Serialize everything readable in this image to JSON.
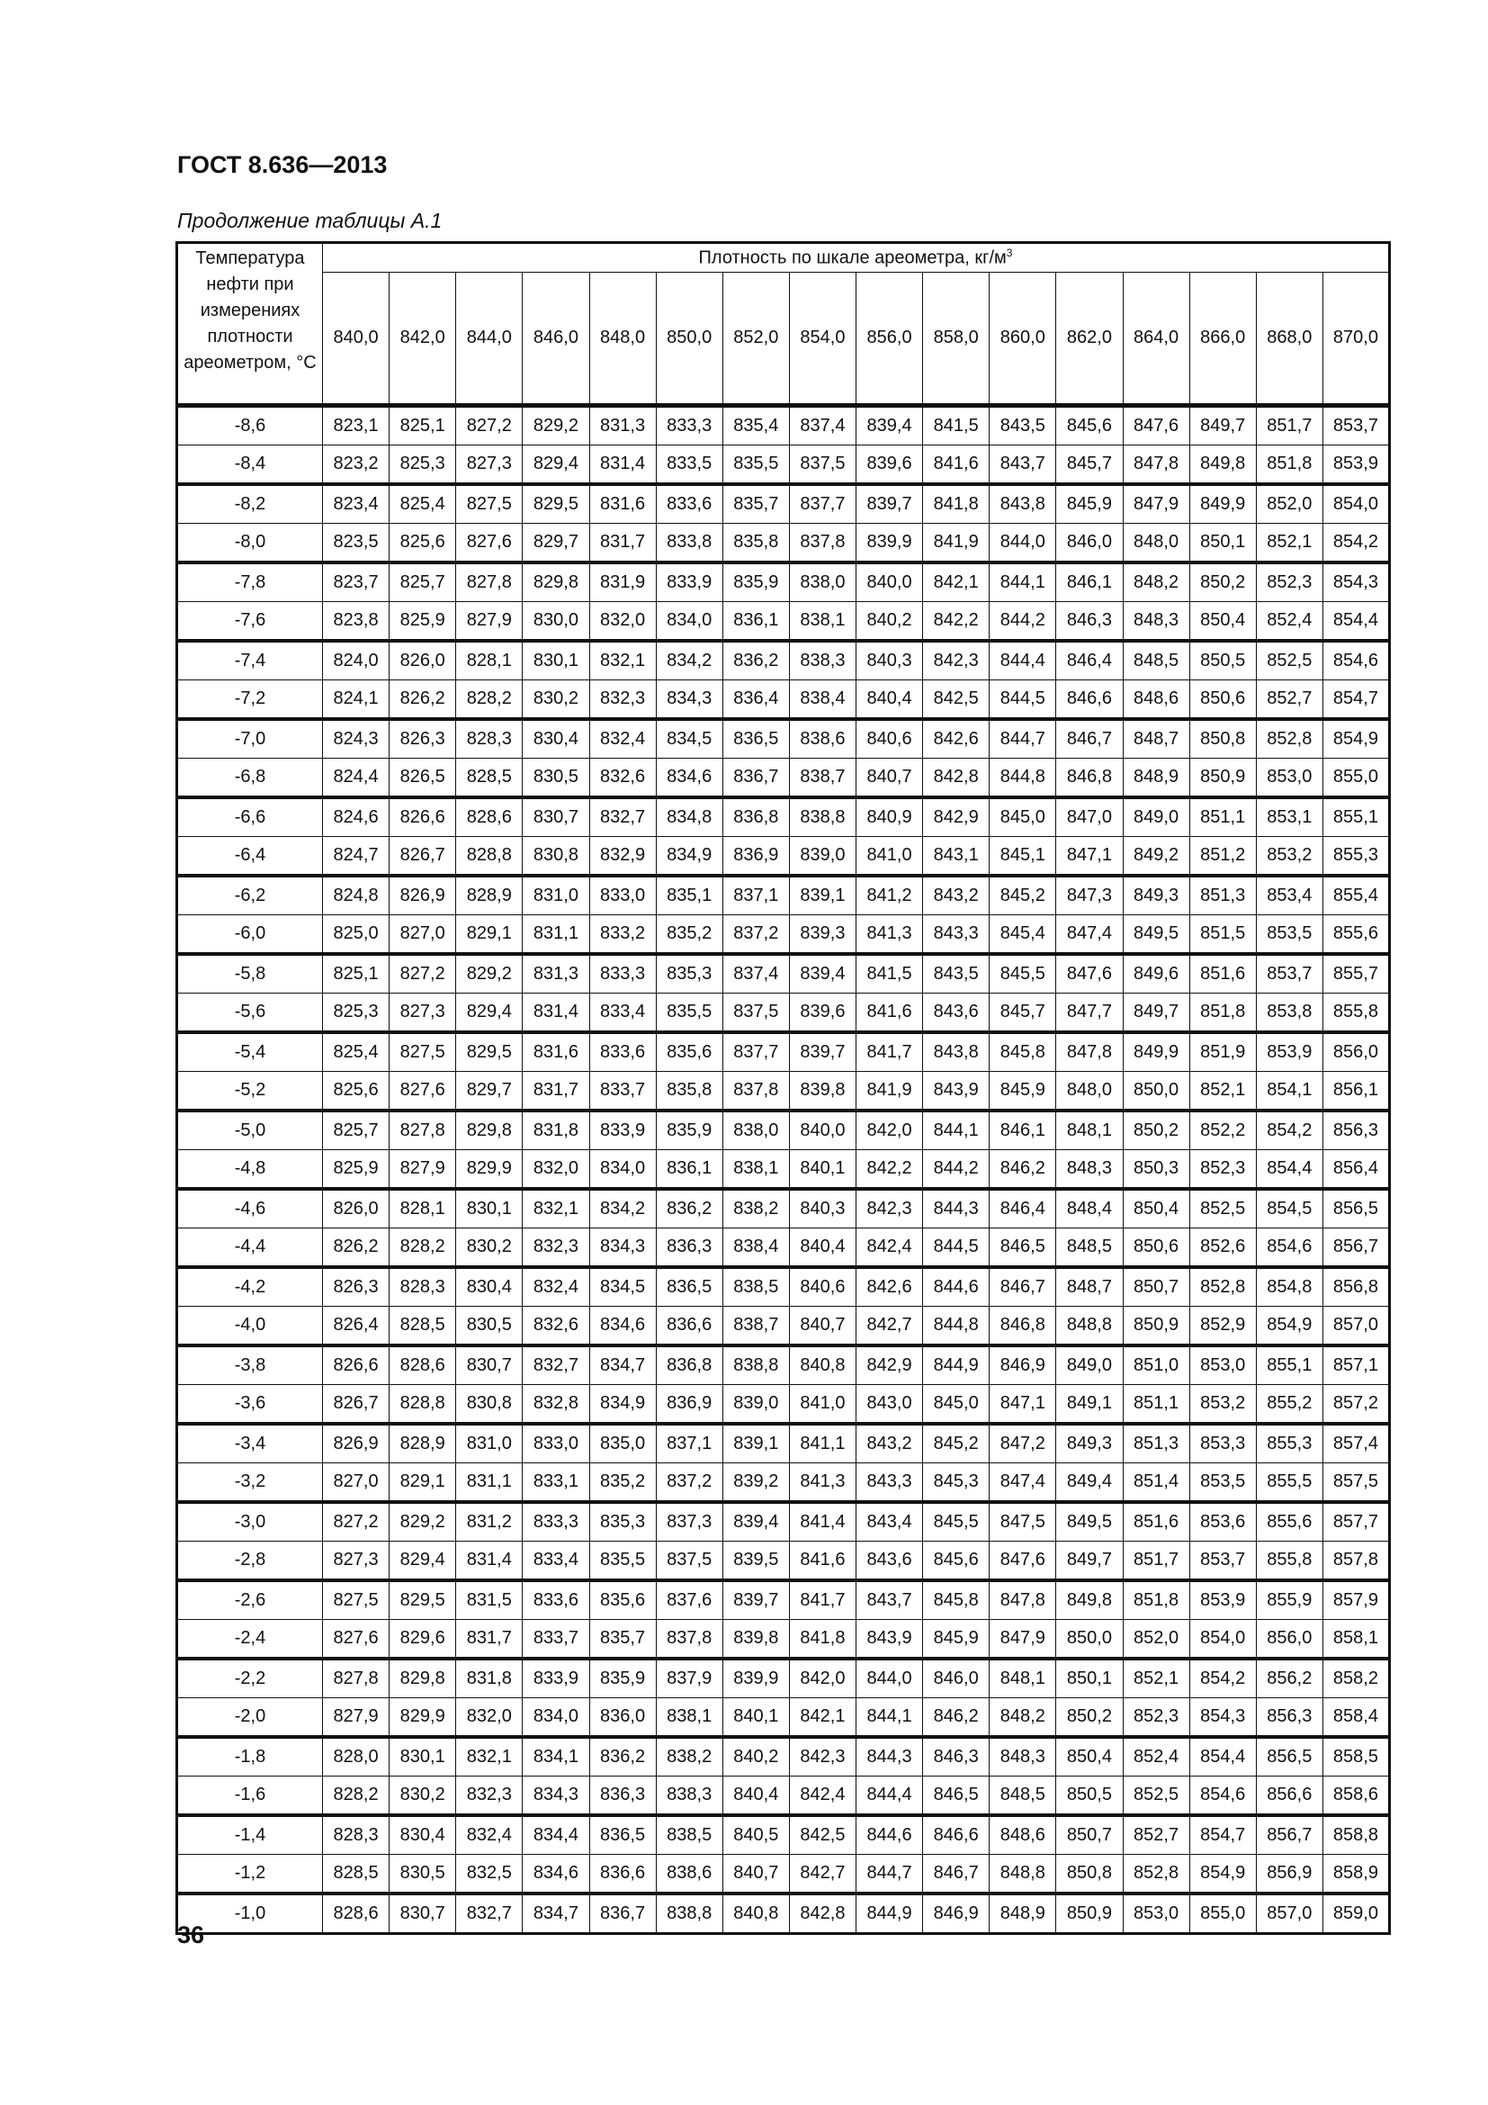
{
  "header": {
    "doc_title": "ГОСТ 8.636—2013",
    "caption": "Продолжение таблицы А.1"
  },
  "table": {
    "temp_header": "Температура нефти при измерениях плотности ареометром, °С",
    "density_header": "Плотность по шкале ареометра, кг/м",
    "density_header_sup": "3",
    "columns": [
      "840,0",
      "842,0",
      "844,0",
      "846,0",
      "848,0",
      "850,0",
      "852,0",
      "854,0",
      "856,0",
      "858,0",
      "860,0",
      "862,0",
      "864,0",
      "866,0",
      "868,0",
      "870,0"
    ],
    "rows": [
      {
        "t": "-8,6",
        "v": [
          "823,1",
          "825,1",
          "827,2",
          "829,2",
          "831,3",
          "833,3",
          "835,4",
          "837,4",
          "839,4",
          "841,5",
          "843,5",
          "845,6",
          "847,6",
          "849,7",
          "851,7",
          "853,7"
        ]
      },
      {
        "t": "-8,4",
        "v": [
          "823,2",
          "825,3",
          "827,3",
          "829,4",
          "831,4",
          "833,5",
          "835,5",
          "837,5",
          "839,6",
          "841,6",
          "843,7",
          "845,7",
          "847,8",
          "849,8",
          "851,8",
          "853,9"
        ]
      },
      {
        "t": "-8,2",
        "v": [
          "823,4",
          "825,4",
          "827,5",
          "829,5",
          "831,6",
          "833,6",
          "835,7",
          "837,7",
          "839,7",
          "841,8",
          "843,8",
          "845,9",
          "847,9",
          "849,9",
          "852,0",
          "854,0"
        ]
      },
      {
        "t": "-8,0",
        "v": [
          "823,5",
          "825,6",
          "827,6",
          "829,7",
          "831,7",
          "833,8",
          "835,8",
          "837,8",
          "839,9",
          "841,9",
          "844,0",
          "846,0",
          "848,0",
          "850,1",
          "852,1",
          "854,2"
        ]
      },
      {
        "t": "-7,8",
        "v": [
          "823,7",
          "825,7",
          "827,8",
          "829,8",
          "831,9",
          "833,9",
          "835,9",
          "838,0",
          "840,0",
          "842,1",
          "844,1",
          "846,1",
          "848,2",
          "850,2",
          "852,3",
          "854,3"
        ]
      },
      {
        "t": "-7,6",
        "v": [
          "823,8",
          "825,9",
          "827,9",
          "830,0",
          "832,0",
          "834,0",
          "836,1",
          "838,1",
          "840,2",
          "842,2",
          "844,2",
          "846,3",
          "848,3",
          "850,4",
          "852,4",
          "854,4"
        ]
      },
      {
        "t": "-7,4",
        "v": [
          "824,0",
          "826,0",
          "828,1",
          "830,1",
          "832,1",
          "834,2",
          "836,2",
          "838,3",
          "840,3",
          "842,3",
          "844,4",
          "846,4",
          "848,5",
          "850,5",
          "852,5",
          "854,6"
        ]
      },
      {
        "t": "-7,2",
        "v": [
          "824,1",
          "826,2",
          "828,2",
          "830,2",
          "832,3",
          "834,3",
          "836,4",
          "838,4",
          "840,4",
          "842,5",
          "844,5",
          "846,6",
          "848,6",
          "850,6",
          "852,7",
          "854,7"
        ]
      },
      {
        "t": "-7,0",
        "v": [
          "824,3",
          "826,3",
          "828,3",
          "830,4",
          "832,4",
          "834,5",
          "836,5",
          "838,6",
          "840,6",
          "842,6",
          "844,7",
          "846,7",
          "848,7",
          "850,8",
          "852,8",
          "854,9"
        ]
      },
      {
        "t": "-6,8",
        "v": [
          "824,4",
          "826,5",
          "828,5",
          "830,5",
          "832,6",
          "834,6",
          "836,7",
          "838,7",
          "840,7",
          "842,8",
          "844,8",
          "846,8",
          "848,9",
          "850,9",
          "853,0",
          "855,0"
        ]
      },
      {
        "t": "-6,6",
        "v": [
          "824,6",
          "826,6",
          "828,6",
          "830,7",
          "832,7",
          "834,8",
          "836,8",
          "838,8",
          "840,9",
          "842,9",
          "845,0",
          "847,0",
          "849,0",
          "851,1",
          "853,1",
          "855,1"
        ]
      },
      {
        "t": "-6,4",
        "v": [
          "824,7",
          "826,7",
          "828,8",
          "830,8",
          "832,9",
          "834,9",
          "836,9",
          "839,0",
          "841,0",
          "843,1",
          "845,1",
          "847,1",
          "849,2",
          "851,2",
          "853,2",
          "855,3"
        ]
      },
      {
        "t": "-6,2",
        "v": [
          "824,8",
          "826,9",
          "828,9",
          "831,0",
          "833,0",
          "835,1",
          "837,1",
          "839,1",
          "841,2",
          "843,2",
          "845,2",
          "847,3",
          "849,3",
          "851,3",
          "853,4",
          "855,4"
        ]
      },
      {
        "t": "-6,0",
        "v": [
          "825,0",
          "827,0",
          "829,1",
          "831,1",
          "833,2",
          "835,2",
          "837,2",
          "839,3",
          "841,3",
          "843,3",
          "845,4",
          "847,4",
          "849,5",
          "851,5",
          "853,5",
          "855,6"
        ]
      },
      {
        "t": "-5,8",
        "v": [
          "825,1",
          "827,2",
          "829,2",
          "831,3",
          "833,3",
          "835,3",
          "837,4",
          "839,4",
          "841,5",
          "843,5",
          "845,5",
          "847,6",
          "849,6",
          "851,6",
          "853,7",
          "855,7"
        ]
      },
      {
        "t": "-5,6",
        "v": [
          "825,3",
          "827,3",
          "829,4",
          "831,4",
          "833,4",
          "835,5",
          "837,5",
          "839,6",
          "841,6",
          "843,6",
          "845,7",
          "847,7",
          "849,7",
          "851,8",
          "853,8",
          "855,8"
        ]
      },
      {
        "t": "-5,4",
        "v": [
          "825,4",
          "827,5",
          "829,5",
          "831,6",
          "833,6",
          "835,6",
          "837,7",
          "839,7",
          "841,7",
          "843,8",
          "845,8",
          "847,8",
          "849,9",
          "851,9",
          "853,9",
          "856,0"
        ]
      },
      {
        "t": "-5,2",
        "v": [
          "825,6",
          "827,6",
          "829,7",
          "831,7",
          "833,7",
          "835,8",
          "837,8",
          "839,8",
          "841,9",
          "843,9",
          "845,9",
          "848,0",
          "850,0",
          "852,1",
          "854,1",
          "856,1"
        ]
      },
      {
        "t": "-5,0",
        "v": [
          "825,7",
          "827,8",
          "829,8",
          "831,8",
          "833,9",
          "835,9",
          "838,0",
          "840,0",
          "842,0",
          "844,1",
          "846,1",
          "848,1",
          "850,2",
          "852,2",
          "854,2",
          "856,3"
        ]
      },
      {
        "t": "-4,8",
        "v": [
          "825,9",
          "827,9",
          "829,9",
          "832,0",
          "834,0",
          "836,1",
          "838,1",
          "840,1",
          "842,2",
          "844,2",
          "846,2",
          "848,3",
          "850,3",
          "852,3",
          "854,4",
          "856,4"
        ]
      },
      {
        "t": "-4,6",
        "v": [
          "826,0",
          "828,1",
          "830,1",
          "832,1",
          "834,2",
          "836,2",
          "838,2",
          "840,3",
          "842,3",
          "844,3",
          "846,4",
          "848,4",
          "850,4",
          "852,5",
          "854,5",
          "856,5"
        ]
      },
      {
        "t": "-4,4",
        "v": [
          "826,2",
          "828,2",
          "830,2",
          "832,3",
          "834,3",
          "836,3",
          "838,4",
          "840,4",
          "842,4",
          "844,5",
          "846,5",
          "848,5",
          "850,6",
          "852,6",
          "854,6",
          "856,7"
        ]
      },
      {
        "t": "-4,2",
        "v": [
          "826,3",
          "828,3",
          "830,4",
          "832,4",
          "834,5",
          "836,5",
          "838,5",
          "840,6",
          "842,6",
          "844,6",
          "846,7",
          "848,7",
          "850,7",
          "852,8",
          "854,8",
          "856,8"
        ]
      },
      {
        "t": "-4,0",
        "v": [
          "826,4",
          "828,5",
          "830,5",
          "832,6",
          "834,6",
          "836,6",
          "838,7",
          "840,7",
          "842,7",
          "844,8",
          "846,8",
          "848,8",
          "850,9",
          "852,9",
          "854,9",
          "857,0"
        ]
      },
      {
        "t": "-3,8",
        "v": [
          "826,6",
          "828,6",
          "830,7",
          "832,7",
          "834,7",
          "836,8",
          "838,8",
          "840,8",
          "842,9",
          "844,9",
          "846,9",
          "849,0",
          "851,0",
          "853,0",
          "855,1",
          "857,1"
        ]
      },
      {
        "t": "-3,6",
        "v": [
          "826,7",
          "828,8",
          "830,8",
          "832,8",
          "834,9",
          "836,9",
          "839,0",
          "841,0",
          "843,0",
          "845,0",
          "847,1",
          "849,1",
          "851,1",
          "853,2",
          "855,2",
          "857,2"
        ]
      },
      {
        "t": "-3,4",
        "v": [
          "826,9",
          "828,9",
          "831,0",
          "833,0",
          "835,0",
          "837,1",
          "839,1",
          "841,1",
          "843,2",
          "845,2",
          "847,2",
          "849,3",
          "851,3",
          "853,3",
          "855,3",
          "857,4"
        ]
      },
      {
        "t": "-3,2",
        "v": [
          "827,0",
          "829,1",
          "831,1",
          "833,1",
          "835,2",
          "837,2",
          "839,2",
          "841,3",
          "843,3",
          "845,3",
          "847,4",
          "849,4",
          "851,4",
          "853,5",
          "855,5",
          "857,5"
        ]
      },
      {
        "t": "-3,0",
        "v": [
          "827,2",
          "829,2",
          "831,2",
          "833,3",
          "835,3",
          "837,3",
          "839,4",
          "841,4",
          "843,4",
          "845,5",
          "847,5",
          "849,5",
          "851,6",
          "853,6",
          "855,6",
          "857,7"
        ]
      },
      {
        "t": "-2,8",
        "v": [
          "827,3",
          "829,4",
          "831,4",
          "833,4",
          "835,5",
          "837,5",
          "839,5",
          "841,6",
          "843,6",
          "845,6",
          "847,6",
          "849,7",
          "851,7",
          "853,7",
          "855,8",
          "857,8"
        ]
      },
      {
        "t": "-2,6",
        "v": [
          "827,5",
          "829,5",
          "831,5",
          "833,6",
          "835,6",
          "837,6",
          "839,7",
          "841,7",
          "843,7",
          "845,8",
          "847,8",
          "849,8",
          "851,8",
          "853,9",
          "855,9",
          "857,9"
        ]
      },
      {
        "t": "-2,4",
        "v": [
          "827,6",
          "829,6",
          "831,7",
          "833,7",
          "835,7",
          "837,8",
          "839,8",
          "841,8",
          "843,9",
          "845,9",
          "847,9",
          "850,0",
          "852,0",
          "854,0",
          "856,0",
          "858,1"
        ]
      },
      {
        "t": "-2,2",
        "v": [
          "827,8",
          "829,8",
          "831,8",
          "833,9",
          "835,9",
          "837,9",
          "839,9",
          "842,0",
          "844,0",
          "846,0",
          "848,1",
          "850,1",
          "852,1",
          "854,2",
          "856,2",
          "858,2"
        ]
      },
      {
        "t": "-2,0",
        "v": [
          "827,9",
          "829,9",
          "832,0",
          "834,0",
          "836,0",
          "838,1",
          "840,1",
          "842,1",
          "844,1",
          "846,2",
          "848,2",
          "850,2",
          "852,3",
          "854,3",
          "856,3",
          "858,4"
        ]
      },
      {
        "t": "-1,8",
        "v": [
          "828,0",
          "830,1",
          "832,1",
          "834,1",
          "836,2",
          "838,2",
          "840,2",
          "842,3",
          "844,3",
          "846,3",
          "848,3",
          "850,4",
          "852,4",
          "854,4",
          "856,5",
          "858,5"
        ]
      },
      {
        "t": "-1,6",
        "v": [
          "828,2",
          "830,2",
          "832,3",
          "834,3",
          "836,3",
          "838,3",
          "840,4",
          "842,4",
          "844,4",
          "846,5",
          "848,5",
          "850,5",
          "852,5",
          "854,6",
          "856,6",
          "858,6"
        ]
      },
      {
        "t": "-1,4",
        "v": [
          "828,3",
          "830,4",
          "832,4",
          "834,4",
          "836,5",
          "838,5",
          "840,5",
          "842,5",
          "844,6",
          "846,6",
          "848,6",
          "850,7",
          "852,7",
          "854,7",
          "856,7",
          "858,8"
        ]
      },
      {
        "t": "-1,2",
        "v": [
          "828,5",
          "830,5",
          "832,5",
          "834,6",
          "836,6",
          "838,6",
          "840,7",
          "842,7",
          "844,7",
          "846,7",
          "848,8",
          "850,8",
          "852,8",
          "854,9",
          "856,9",
          "858,9"
        ]
      },
      {
        "t": "-1,0",
        "v": [
          "828,6",
          "830,7",
          "832,7",
          "834,7",
          "836,7",
          "838,8",
          "840,8",
          "842,8",
          "844,9",
          "846,9",
          "848,9",
          "850,9",
          "853,0",
          "855,0",
          "857,0",
          "859,0"
        ]
      }
    ]
  },
  "footer": {
    "page_number": "36"
  }
}
